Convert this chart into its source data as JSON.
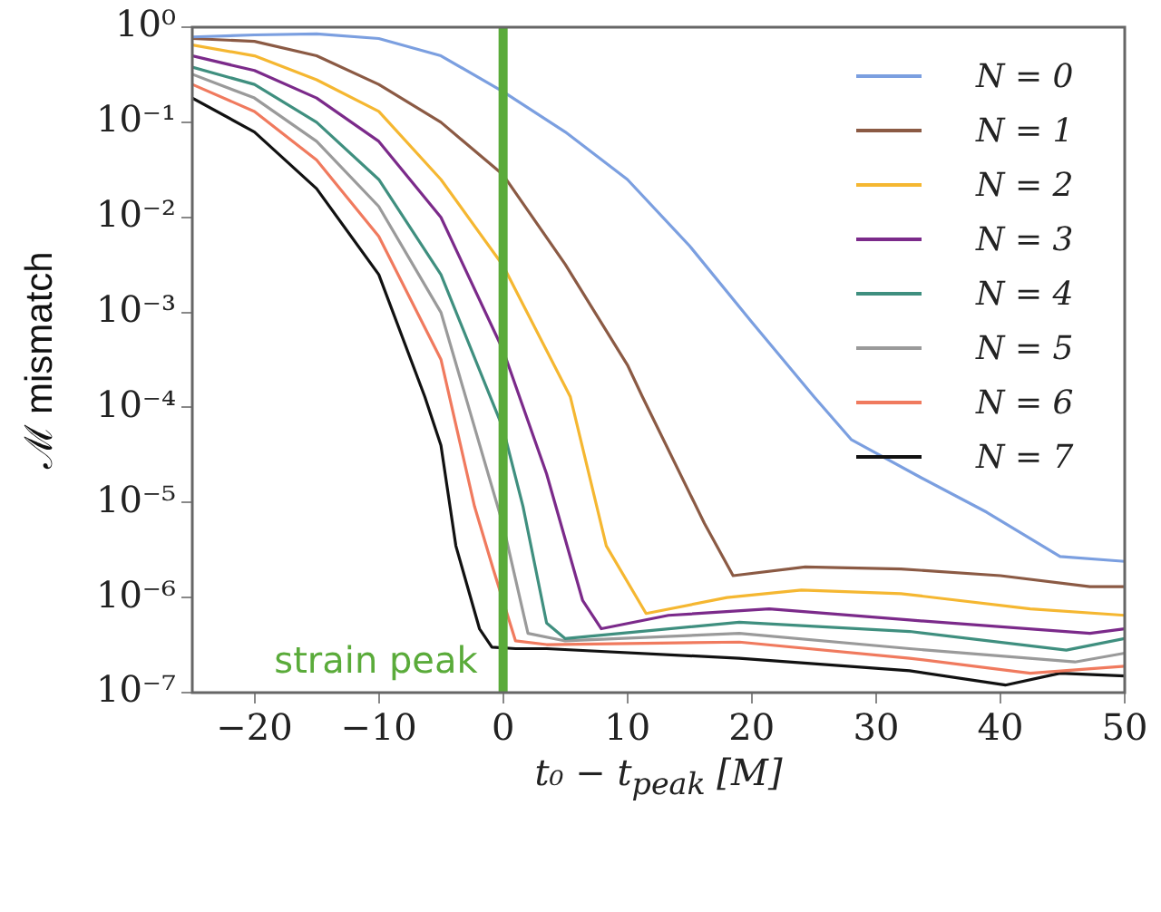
{
  "chart_data": {
    "type": "line",
    "xlabel": "t₀ − t$_{peak}$ [M]",
    "ylabel": "ℳ mismatch",
    "xlim": [
      -25,
      50
    ],
    "xticks": [
      {
        "value": -20,
        "label": "−20"
      },
      {
        "value": -10,
        "label": "−10"
      },
      0,
      10,
      20,
      30,
      40,
      50
    ],
    "ylim": [
      1e-07,
      1
    ],
    "log": "y",
    "yticks": [
      {
        "value": 1e-07,
        "label": "10⁻⁷"
      },
      {
        "value": 1e-06,
        "label": "10⁻⁶"
      },
      {
        "value": 1e-05,
        "label": "10⁻⁵"
      },
      {
        "value": 0.0001,
        "label": "10⁻⁴"
      },
      {
        "value": 0.001,
        "label": "10⁻³"
      },
      {
        "value": 0.01,
        "label": "10⁻²"
      },
      {
        "value": 0.1,
        "label": "10⁻¹"
      },
      {
        "value": 1,
        "label": "10⁰"
      }
    ],
    "legend": "top right",
    "grid": false,
    "marker": "none",
    "line_style": "solid",
    "ref_lines": [
      {
        "axis": "x",
        "value": 0,
        "label": "strain peak",
        "color": "#5aab3a"
      }
    ],
    "series": [
      {
        "name": "N = 0",
        "color": "#7b9fe0",
        "x": [
          -25,
          -20,
          -15,
          -10,
          -5,
          0,
          5,
          10,
          15,
          20,
          25,
          28,
          33.7,
          38.9,
          44.8,
          50
        ],
        "values": [
          0.79,
          0.83,
          0.85,
          0.76,
          0.5,
          0.21,
          0.079,
          0.025,
          0.005,
          0.00079,
          0.00013,
          4.6e-05,
          1.8e-05,
          7.9e-06,
          2.7e-06,
          2.4e-06
        ]
      },
      {
        "name": "N = 1",
        "color": "#8b5a44",
        "x": [
          -25,
          -20,
          -15,
          -10,
          -5,
          0,
          5,
          10,
          11.2,
          16.2,
          18.5,
          24.3,
          32,
          40,
          47.2,
          50
        ],
        "values": [
          0.76,
          0.71,
          0.5,
          0.25,
          0.1,
          0.028,
          0.0032,
          0.00028,
          0.00013,
          6e-06,
          1.7e-06,
          2.1e-06,
          2e-06,
          1.7e-06,
          1.3e-06,
          1.3e-06
        ]
      },
      {
        "name": "N = 2",
        "color": "#f5b731",
        "x": [
          -25,
          -20,
          -15,
          -10,
          -5,
          0,
          5.4,
          8.3,
          11.5,
          18,
          24,
          32,
          42.4,
          50
        ],
        "values": [
          0.65,
          0.5,
          0.28,
          0.13,
          0.025,
          0.0031,
          0.00013,
          3.5e-06,
          6.8e-07,
          1e-06,
          1.2e-06,
          1.1e-06,
          7.6e-07,
          6.5e-07
        ]
      },
      {
        "name": "N = 3",
        "color": "#7b2a8a",
        "x": [
          -25,
          -20,
          -15,
          -10,
          -5,
          0,
          3.5,
          6.4,
          7.9,
          13.3,
          21.4,
          32.7,
          47.2,
          50
        ],
        "values": [
          0.5,
          0.35,
          0.18,
          0.063,
          0.01,
          0.0004,
          2e-05,
          9.3e-07,
          4.7e-07,
          6.5e-07,
          7.6e-07,
          5.8e-07,
          4.2e-07,
          4.7e-07
        ]
      },
      {
        "name": "N = 4",
        "color": "#3f8f7f",
        "x": [
          -25,
          -20,
          -15,
          -10,
          -5,
          0,
          1.6,
          3.5,
          5,
          19,
          32.7,
          45.3,
          50
        ],
        "values": [
          0.38,
          0.25,
          0.1,
          0.025,
          0.0025,
          6e-05,
          9.1e-06,
          5.4e-07,
          3.7e-07,
          5.5e-07,
          4.4e-07,
          2.8e-07,
          3.7e-07
        ]
      },
      {
        "name": "N = 5",
        "color": "#9a9a9a",
        "x": [
          -25,
          -20,
          -15,
          -10,
          -5,
          0,
          2,
          5,
          19,
          32.7,
          46,
          50
        ],
        "values": [
          0.32,
          0.18,
          0.063,
          0.013,
          0.001,
          5.8e-06,
          4.2e-07,
          3.5e-07,
          4.2e-07,
          2.9e-07,
          2.1e-07,
          2.6e-07
        ]
      },
      {
        "name": "N = 6",
        "color": "#f07a5e",
        "x": [
          -25,
          -20,
          -15,
          -10,
          -5,
          -2.3,
          -0.8,
          1,
          3.5,
          19,
          32.7,
          42.4,
          50
        ],
        "values": [
          0.25,
          0.13,
          0.04,
          0.0063,
          0.00032,
          9.1e-06,
          2e-06,
          3.5e-07,
          3.2e-07,
          3.4e-07,
          2.3e-07,
          1.6e-07,
          1.9e-07
        ]
      },
      {
        "name": "N = 7",
        "color": "#111111",
        "x": [
          -25,
          -20,
          -15,
          -10,
          -6.3,
          -5,
          -3.8,
          -1.9,
          -0.9,
          1,
          3.5,
          19,
          32.7,
          40.4,
          44.8,
          50
        ],
        "values": [
          0.18,
          0.079,
          0.02,
          0.0025,
          0.00013,
          4e-05,
          3.5e-06,
          4.7e-07,
          3e-07,
          2.9e-07,
          2.9e-07,
          2.3e-07,
          1.7e-07,
          1.2e-07,
          1.6e-07,
          1.5e-07
        ]
      }
    ]
  }
}
